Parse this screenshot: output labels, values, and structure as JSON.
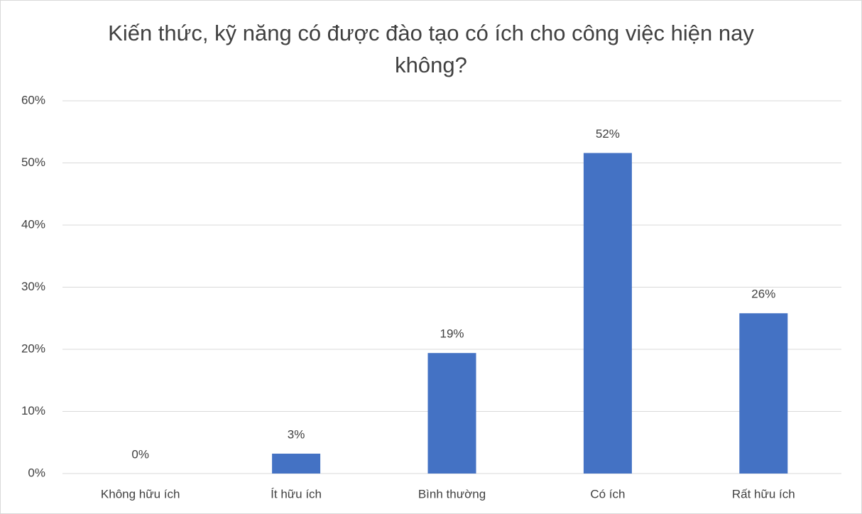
{
  "chart_data": {
    "type": "bar",
    "title": "Kiến thức, kỹ năng có được đào tạo có ích cho công việc hiện nay không?",
    "categories": [
      "Không hữu ích",
      "Ít hữu ích",
      "Bình thường",
      "Có ích",
      "Rất hữu ích"
    ],
    "values": [
      0,
      3.2,
      19.4,
      51.6,
      25.8
    ],
    "value_labels": [
      "0%",
      "3%",
      "19%",
      "52%",
      "26%"
    ],
    "color": "#4472c4",
    "ylim": [
      0,
      60
    ],
    "yticks": [
      {
        "value": 0,
        "label": "0%"
      },
      {
        "value": 10,
        "label": "10%"
      },
      {
        "value": 20,
        "label": "20%"
      },
      {
        "value": 30,
        "label": "30%"
      },
      {
        "value": 40,
        "label": "40%"
      },
      {
        "value": 50,
        "label": "50%"
      },
      {
        "value": 60,
        "label": "60%"
      }
    ],
    "grid": true
  }
}
